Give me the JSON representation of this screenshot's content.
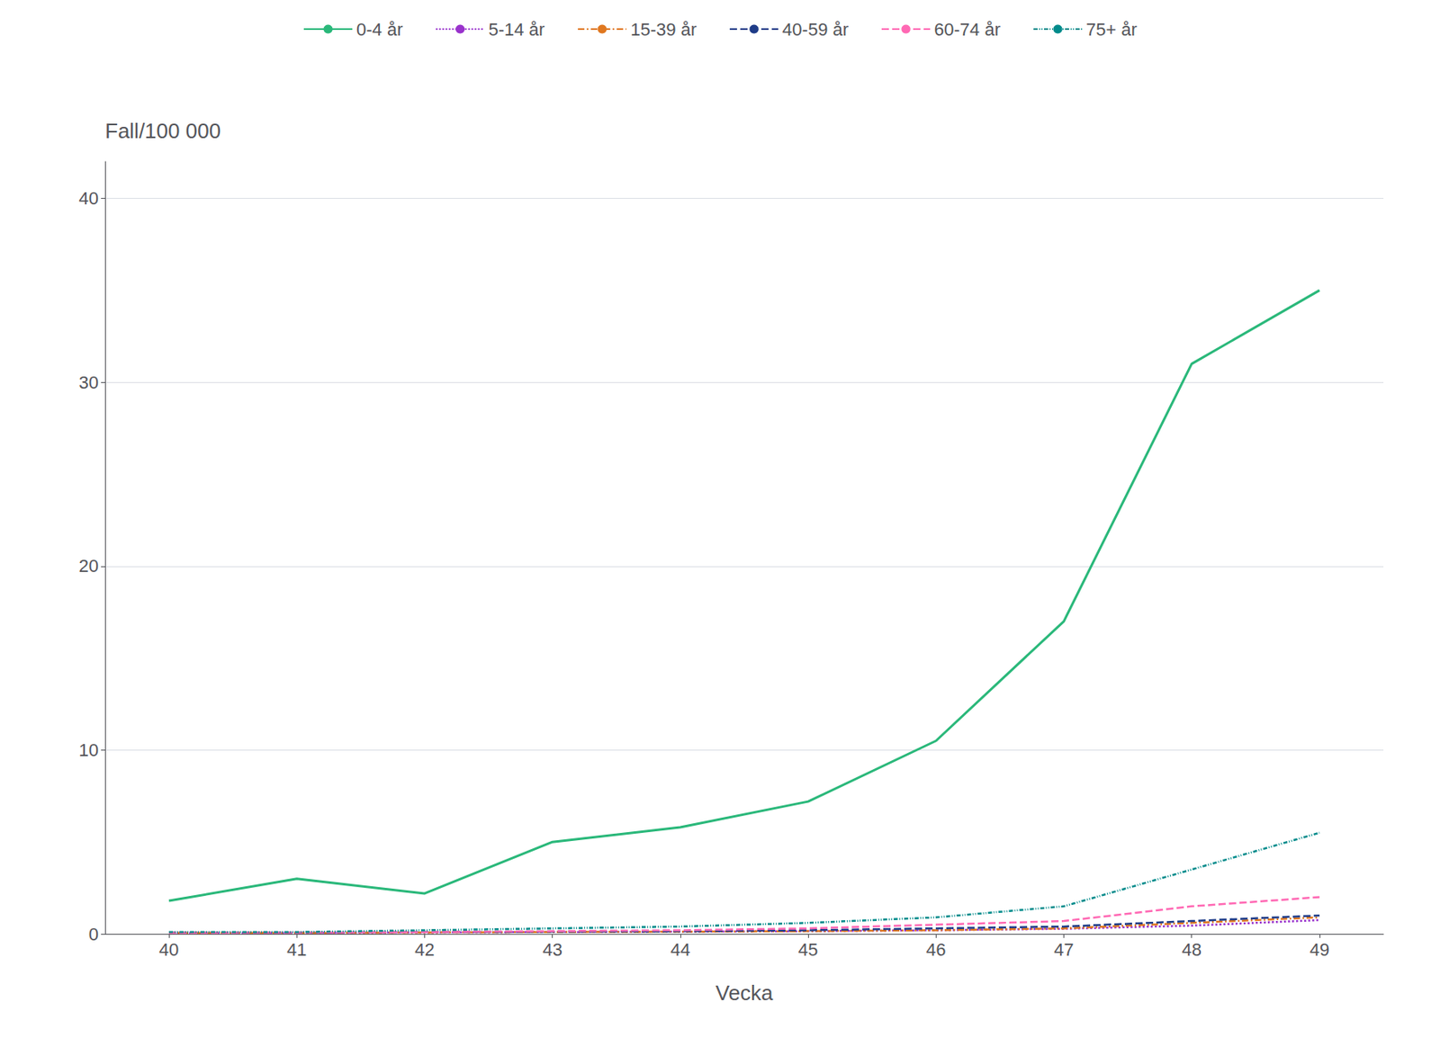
{
  "chart_data": {
    "type": "line",
    "xlabel": "Vecka",
    "ylabel": "Fall/100 000",
    "x": [
      40,
      41,
      42,
      43,
      44,
      45,
      46,
      47,
      48,
      49
    ],
    "series": [
      {
        "name": "0-4 år",
        "color": "#2ab87a",
        "line_style": "solid",
        "values": [
          1.8,
          3.0,
          2.2,
          5.0,
          5.8,
          7.2,
          10.5,
          17.0,
          31.0,
          35.0
        ]
      },
      {
        "name": "5-14 år",
        "color": "#9932cc",
        "line_style": "dotted",
        "values": [
          0.05,
          0.06,
          0.08,
          0.1,
          0.12,
          0.15,
          0.2,
          0.28,
          0.45,
          0.75
        ]
      },
      {
        "name": "15-39 år",
        "color": "#e07820",
        "line_style": "dashdot",
        "values": [
          0.05,
          0.05,
          0.08,
          0.1,
          0.12,
          0.15,
          0.2,
          0.3,
          0.6,
          0.9
        ]
      },
      {
        "name": "40-59 år",
        "color": "#1f3c88",
        "line_style": "dashed",
        "values": [
          0.05,
          0.07,
          0.1,
          0.12,
          0.15,
          0.2,
          0.3,
          0.4,
          0.7,
          1.0
        ]
      },
      {
        "name": "60-74 år",
        "color": "#ff69b4",
        "line_style": "dashed",
        "values": [
          0.05,
          0.07,
          0.1,
          0.15,
          0.2,
          0.3,
          0.5,
          0.7,
          1.5,
          2.0
        ]
      },
      {
        "name": "75+ år",
        "color": "#008b8b",
        "line_style": "dashdotdotted",
        "values": [
          0.1,
          0.1,
          0.2,
          0.3,
          0.4,
          0.6,
          0.9,
          1.5,
          3.5,
          5.5
        ]
      }
    ],
    "xlim": [
      39.5,
      49.5
    ],
    "ylim": [
      0,
      42
    ],
    "xticks": [
      40,
      41,
      42,
      43,
      44,
      45,
      46,
      47,
      48,
      49
    ],
    "yticks": [
      0,
      10,
      20,
      30,
      40
    ],
    "grid": true,
    "legend": "top"
  }
}
